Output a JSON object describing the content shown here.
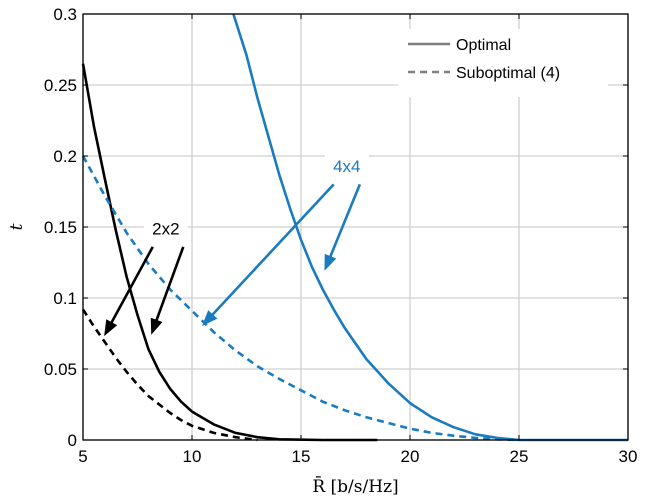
{
  "chart_data": {
    "type": "line",
    "title": "",
    "xlabel": "R̄ [b/s/Hz]",
    "ylabel": "t",
    "xlim": [
      5,
      30
    ],
    "ylim": [
      0,
      0.3
    ],
    "grid": true,
    "xticks": [
      "5",
      "10",
      "15",
      "20",
      "25",
      "30"
    ],
    "yticks": [
      "0",
      "0.05",
      "0.1",
      "0.15",
      "0.2",
      "0.25",
      "0.3"
    ],
    "legend": {
      "placement": "top-right",
      "entries": [
        {
          "label": "Optimal",
          "style": "solid"
        },
        {
          "label": "Suboptimal (4)",
          "style": "dashed"
        }
      ]
    },
    "series": [
      {
        "group": "2x2",
        "style": "solid",
        "color": "#000000",
        "x": [
          5,
          5.5,
          6,
          6.5,
          7,
          7.5,
          8,
          8.5,
          9,
          9.5,
          10,
          11,
          12,
          13,
          14,
          16,
          18.5
        ],
        "y": [
          0.265,
          0.221,
          0.184,
          0.148,
          0.115,
          0.088,
          0.064,
          0.048,
          0.036,
          0.027,
          0.02,
          0.011,
          0.005,
          0.002,
          0.0005,
          0,
          0
        ]
      },
      {
        "group": "2x2",
        "style": "dashed",
        "color": "#000000",
        "x": [
          5,
          5.5,
          6,
          6.5,
          7,
          7.5,
          8,
          8.5,
          9,
          9.5,
          10,
          11,
          12,
          13
        ],
        "y": [
          0.092,
          0.08,
          0.069,
          0.058,
          0.048,
          0.039,
          0.031,
          0.025,
          0.019,
          0.014,
          0.01,
          0.005,
          0.002,
          0
        ]
      },
      {
        "group": "4x4",
        "style": "solid",
        "color": "#1a7bbf",
        "x": [
          11.9,
          12.5,
          13,
          13.5,
          14,
          14.5,
          15,
          15.5,
          16,
          16.5,
          17,
          18,
          19,
          20,
          21,
          22,
          23,
          24,
          25,
          26,
          28,
          30
        ],
        "y": [
          0.3,
          0.271,
          0.241,
          0.214,
          0.187,
          0.163,
          0.141,
          0.122,
          0.106,
          0.092,
          0.079,
          0.057,
          0.04,
          0.026,
          0.016,
          0.009,
          0.004,
          0.0015,
          0,
          0,
          0,
          0
        ]
      },
      {
        "group": "4x4",
        "style": "dashed",
        "color": "#1a7bbf",
        "x": [
          5,
          6,
          7,
          8,
          9,
          10,
          11,
          12,
          13,
          14,
          15,
          16,
          17,
          18,
          19,
          20,
          21,
          22,
          23,
          24,
          25
        ],
        "y": [
          0.2,
          0.172,
          0.146,
          0.124,
          0.106,
          0.091,
          0.076,
          0.063,
          0.052,
          0.043,
          0.035,
          0.027,
          0.021,
          0.016,
          0.012,
          0.008,
          0.005,
          0.003,
          0.0015,
          0.0005,
          0
        ]
      }
    ],
    "annotations": [
      {
        "text": "2x2",
        "color": "#000000",
        "x": 8.8,
        "y": 0.147
      },
      {
        "text": "4x4",
        "color": "#1a7bbf",
        "x": 17.1,
        "y": 0.191
      }
    ],
    "arrows": [
      {
        "color": "#000000",
        "from": [
          8.2,
          0.136
        ],
        "to": [
          6.0,
          0.074
        ]
      },
      {
        "color": "#000000",
        "from": [
          9.6,
          0.136
        ],
        "to": [
          8.15,
          0.075
        ]
      },
      {
        "color": "#1a7bbf",
        "from": [
          16.5,
          0.18
        ],
        "to": [
          10.5,
          0.081
        ]
      },
      {
        "color": "#1a7bbf",
        "from": [
          17.7,
          0.18
        ],
        "to": [
          16.1,
          0.12
        ]
      }
    ]
  }
}
